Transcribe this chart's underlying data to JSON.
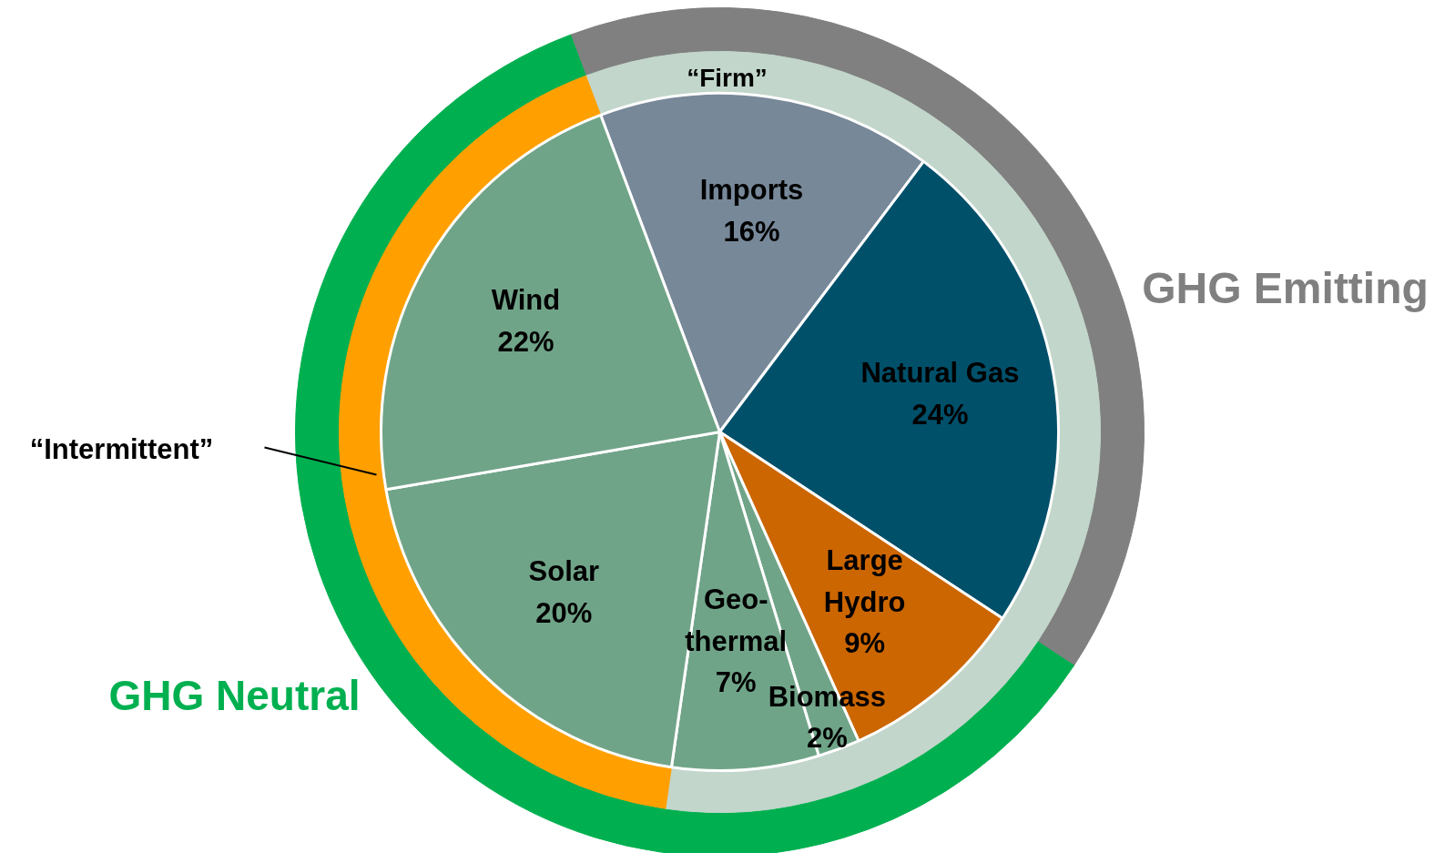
{
  "chart_data": {
    "type": "pie",
    "categories": [
      "Imports",
      "Natural Gas",
      "Large\nHydro",
      "Biomass",
      "Geo-\nthermal",
      "Solar",
      "Wind"
    ],
    "series": [
      {
        "type": "donut",
        "values": [
          16,
          24,
          9,
          2,
          7,
          20,
          22
        ],
        "colors": [
          "#808080",
          "#808080",
          "#00b050",
          "#00b050",
          "#00b050",
          "#00b050",
          "#00b050"
        ]
      },
      {
        "type": "donut",
        "values": [
          16,
          24,
          9,
          2,
          7,
          20,
          22
        ],
        "colors": [
          "#c2d6cb",
          "#c2d6cb",
          "#c2d6cb",
          "#c2d6cb",
          "#c2d6cb",
          "#ffa000",
          "#ffa000"
        ]
      },
      {
        "type": "pie",
        "values": [
          16,
          24,
          9,
          2,
          7,
          20,
          22
        ],
        "colors": [
          "#778899",
          "#00506a",
          "#cc6600",
          "#70a488",
          "#70a488",
          "#70a488",
          "#70a488"
        ]
      }
    ],
    "value_labels": [
      "16%",
      "24%",
      "9%",
      "2%",
      "7%",
      "20%",
      "22%"
    ],
    "annotations": [
      "“Firm”",
      "“Intermittent”",
      "GHG Emitting",
      "GHG Neutral"
    ]
  }
}
